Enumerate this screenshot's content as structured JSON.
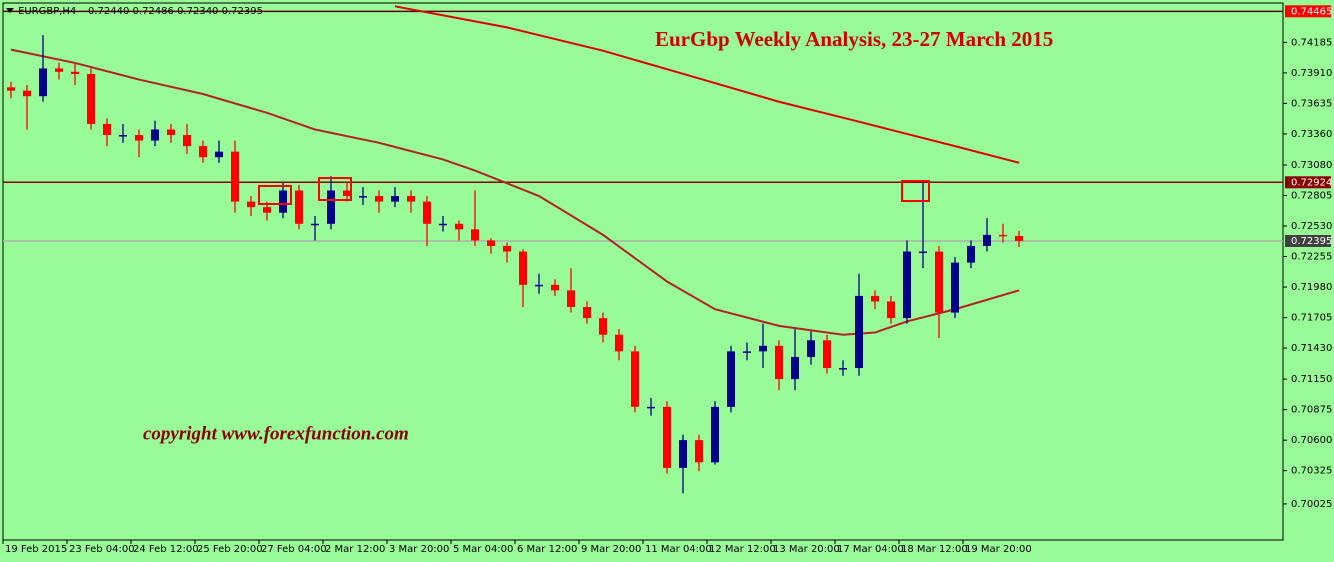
{
  "chart_data": {
    "type": "candlestick",
    "symbol": "EURGBP,H4",
    "quote": "0.72440 0.72486 0.72340 0.72395",
    "title": "EurGbp Weekly Analysis, 23-27 March 2015",
    "annotation": "copyright  www.forexfunction.com",
    "up_color": "#00008b",
    "down_color": "#ff0000",
    "ylim": [
      0.697,
      0.7454
    ],
    "yticks": [
      {
        "value": 0.74185,
        "label": "0.74185"
      },
      {
        "value": 0.7391,
        "label": "0.73910"
      },
      {
        "value": 0.73635,
        "label": "0.73635"
      },
      {
        "value": 0.7336,
        "label": "0.73360"
      },
      {
        "value": 0.7308,
        "label": "0.73080"
      },
      {
        "value": 0.72805,
        "label": "0.72805"
      },
      {
        "value": 0.7253,
        "label": "0.72530"
      },
      {
        "value": 0.72255,
        "label": "0.72255"
      },
      {
        "value": 0.7198,
        "label": "0.71980"
      },
      {
        "value": 0.71705,
        "label": "0.71705"
      },
      {
        "value": 0.7143,
        "label": "0.71430"
      },
      {
        "value": 0.7115,
        "label": "0.71150"
      },
      {
        "value": 0.70875,
        "label": "0.70875"
      },
      {
        "value": 0.706,
        "label": "0.70600"
      },
      {
        "value": 0.70325,
        "label": "0.70325"
      },
      {
        "value": 0.70025,
        "label": "0.70025"
      }
    ],
    "hlines": [
      {
        "value": 0.74465,
        "label": "0.74465",
        "color": "#5a0000",
        "tag": "#ff0000"
      },
      {
        "value": 0.72924,
        "label": "0.72924",
        "color": "#8b0000",
        "tag": "#8b0000"
      },
      {
        "value": 0.72395,
        "label": "0.72395",
        "color": "#b0b0b0",
        "tag": "#404040"
      }
    ],
    "categories": [
      "19 Feb 2015",
      null,
      null,
      null,
      "23 Feb 04:00",
      null,
      null,
      null,
      "24 Feb 12:00",
      null,
      null,
      null,
      "25 Feb 20:00",
      null,
      null,
      null,
      "27 Feb 04:00",
      null,
      null,
      null,
      "2 Mar 12:00",
      null,
      null,
      null,
      "3 Mar 20:00",
      null,
      null,
      null,
      "5 Mar 04:00",
      null,
      null,
      null,
      "6 Mar 12:00",
      null,
      null,
      null,
      "9 Mar 20:00",
      null,
      null,
      null,
      "11 Mar 04:00",
      null,
      null,
      null,
      "12 Mar 12:00",
      null,
      null,
      null,
      "13 Mar 20:00",
      null,
      null,
      null,
      "17 Mar 04:00",
      null,
      null,
      null,
      "18 Mar 12:00",
      null,
      null,
      null,
      "19 Mar 20:00",
      null,
      null,
      null
    ],
    "open": [
      0.7378,
      0.7375,
      0.737,
      0.7395,
      0.7392,
      0.739,
      0.7345,
      0.7335,
      0.7335,
      0.733,
      0.734,
      0.7335,
      0.7325,
      0.7315,
      0.732,
      0.7275,
      0.727,
      0.7265,
      0.7285,
      0.7255,
      0.7255,
      0.7285,
      0.728,
      0.728,
      0.7275,
      0.728,
      0.7275,
      0.7255,
      0.7255,
      0.725,
      0.724,
      0.7235,
      0.723,
      0.72,
      0.72,
      0.7195,
      0.718,
      0.717,
      0.7155,
      0.714,
      0.709,
      0.709,
      0.7035,
      0.706,
      0.704,
      0.709,
      0.714,
      0.714,
      0.7145,
      0.7115,
      0.7135,
      0.715,
      0.7125,
      0.7125,
      0.719,
      0.7185,
      0.717,
      0.723,
      0.723,
      0.7175,
      0.722,
      0.7235,
      0.7245,
      0.7244
    ],
    "high": [
      0.7383,
      0.738,
      0.7425,
      0.74,
      0.74,
      0.7395,
      0.735,
      0.7345,
      0.734,
      0.7348,
      0.7345,
      0.7345,
      0.733,
      0.733,
      0.733,
      0.728,
      0.7275,
      0.7292,
      0.729,
      0.7262,
      0.7298,
      0.7292,
      0.7288,
      0.7285,
      0.7288,
      0.7285,
      0.728,
      0.7262,
      0.7258,
      0.7285,
      0.7242,
      0.7238,
      0.7232,
      0.721,
      0.7205,
      0.7215,
      0.7185,
      0.7175,
      0.716,
      0.7145,
      0.7098,
      0.7095,
      0.7065,
      0.7065,
      0.7095,
      0.7145,
      0.7148,
      0.7165,
      0.715,
      0.716,
      0.7158,
      0.7155,
      0.7132,
      0.721,
      0.7195,
      0.719,
      0.724,
      0.7292,
      0.7235,
      0.7225,
      0.724,
      0.726,
      0.7255,
      0.72486
    ],
    "low": [
      0.7368,
      0.734,
      0.7365,
      0.7385,
      0.738,
      0.734,
      0.7325,
      0.7328,
      0.7315,
      0.7325,
      0.7328,
      0.7318,
      0.731,
      0.731,
      0.7265,
      0.7262,
      0.7258,
      0.726,
      0.725,
      0.724,
      0.725,
      0.7275,
      0.7272,
      0.7265,
      0.727,
      0.7265,
      0.7235,
      0.7248,
      0.724,
      0.7235,
      0.7228,
      0.722,
      0.718,
      0.7192,
      0.719,
      0.7175,
      0.7165,
      0.7148,
      0.7132,
      0.7085,
      0.7082,
      0.703,
      0.7012,
      0.7032,
      0.7038,
      0.7085,
      0.7132,
      0.7125,
      0.7105,
      0.7105,
      0.7128,
      0.712,
      0.7118,
      0.7118,
      0.7178,
      0.7165,
      0.7165,
      0.7215,
      0.7152,
      0.717,
      0.7215,
      0.723,
      0.7238,
      0.7234
    ],
    "close": [
      0.7375,
      0.737,
      0.7395,
      0.7392,
      0.739,
      0.7345,
      0.7335,
      0.7335,
      0.733,
      0.734,
      0.7335,
      0.7325,
      0.7315,
      0.732,
      0.7275,
      0.727,
      0.7265,
      0.7285,
      0.7255,
      0.7255,
      0.7285,
      0.728,
      0.728,
      0.7275,
      0.728,
      0.7275,
      0.7255,
      0.7255,
      0.725,
      0.724,
      0.7235,
      0.723,
      0.72,
      0.72,
      0.7195,
      0.718,
      0.717,
      0.7155,
      0.714,
      0.709,
      0.709,
      0.7035,
      0.706,
      0.704,
      0.709,
      0.714,
      0.714,
      0.7145,
      0.7115,
      0.7135,
      0.715,
      0.7125,
      0.7125,
      0.719,
      0.7185,
      0.717,
      0.723,
      0.723,
      0.7175,
      0.722,
      0.7235,
      0.7245,
      0.7244,
      0.72395
    ],
    "lines": [
      {
        "color": "#b22222",
        "x": [
          0,
          4,
          8,
          12,
          16,
          19,
          23,
          27,
          29,
          33,
          37,
          41,
          44,
          48,
          52,
          54,
          56,
          59,
          63
        ],
        "values": [
          0.7412,
          0.74,
          0.7385,
          0.7372,
          0.7355,
          0.734,
          0.7328,
          0.7313,
          0.7303,
          0.728,
          0.7245,
          0.7203,
          0.7178,
          0.7163,
          0.7155,
          0.7157,
          0.7167,
          0.7178,
          0.7195
        ]
      },
      {
        "color": "#e00000",
        "x": [
          24,
          31,
          37,
          43,
          48,
          53,
          56,
          59,
          63
        ],
        "values": [
          0.7451,
          0.7432,
          0.7411,
          0.7386,
          0.7365,
          0.7347,
          0.7336,
          0.7325,
          0.731
        ]
      }
    ]
  }
}
